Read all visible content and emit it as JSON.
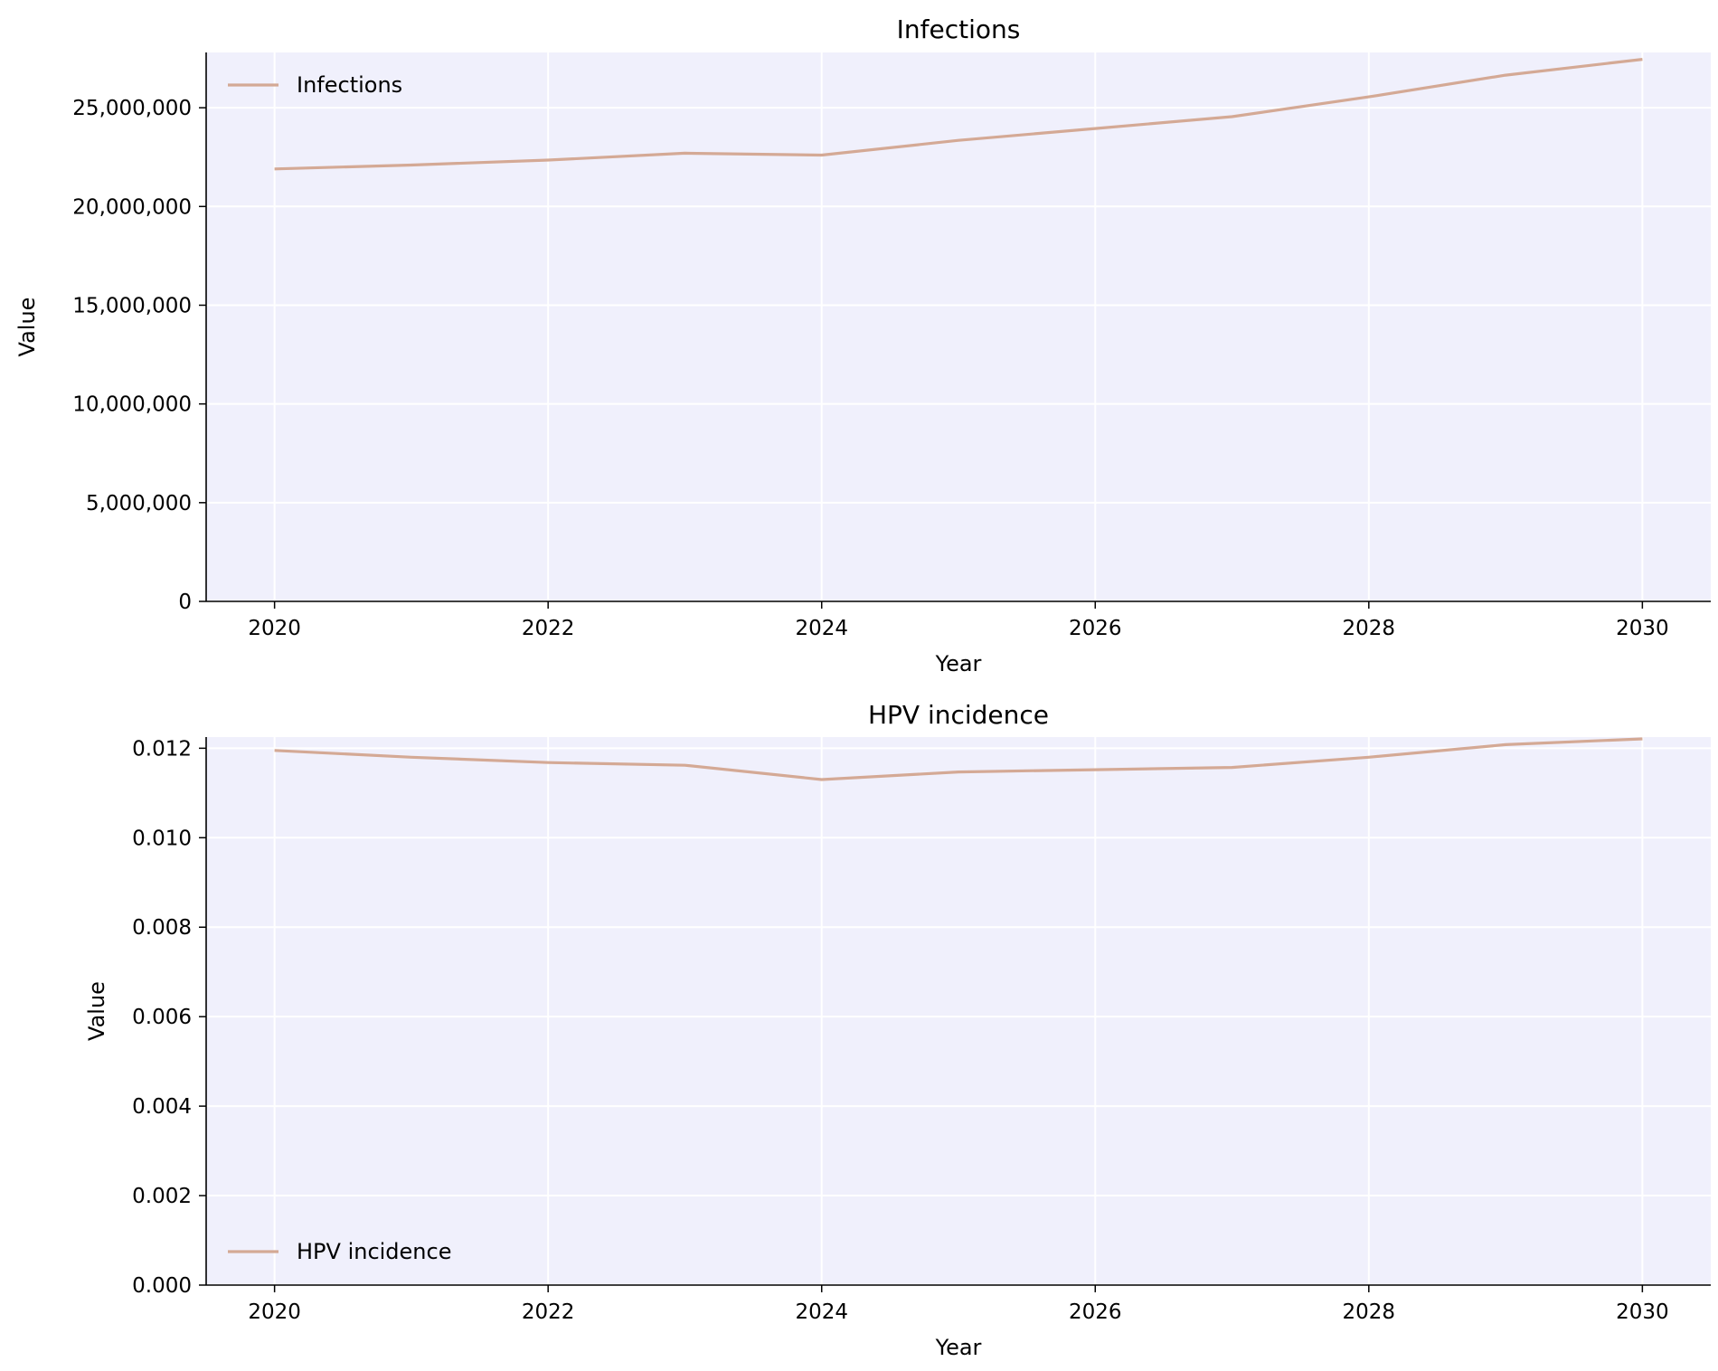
{
  "colors": {
    "background": "#ffffff",
    "plot_background": "#f0f0fc",
    "grid": "#ffffff",
    "line": "#d4a995",
    "axis": "#000000"
  },
  "chart_data": [
    {
      "type": "line",
      "title": "Infections",
      "xlabel": "Year",
      "ylabel": "Value",
      "xlim": [
        2019.5,
        2030.5
      ],
      "ylim": [
        0,
        27800000
      ],
      "x_ticks": [
        2020,
        2022,
        2024,
        2026,
        2028,
        2030
      ],
      "x_tick_labels": [
        "2020",
        "2022",
        "2024",
        "2026",
        "2028",
        "2030"
      ],
      "y_ticks": [
        0,
        5000000,
        10000000,
        15000000,
        20000000,
        25000000
      ],
      "y_tick_labels": [
        "0",
        "5,000,000",
        "10,000,000",
        "15,000,000",
        "20,000,000",
        "25,000,000"
      ],
      "grid": true,
      "legend_position": "top-left",
      "series": [
        {
          "name": "Infections",
          "x": [
            2020,
            2021,
            2022,
            2023,
            2024,
            2025,
            2026,
            2027,
            2028,
            2029,
            2030
          ],
          "values": [
            21900000,
            22100000,
            22350000,
            22700000,
            22600000,
            23350000,
            23950000,
            24550000,
            25550000,
            26650000,
            27450000
          ]
        }
      ]
    },
    {
      "type": "line",
      "title": "HPV incidence",
      "xlabel": "Year",
      "ylabel": "Value",
      "xlim": [
        2019.5,
        2030.5
      ],
      "ylim": [
        0,
        0.01225
      ],
      "x_ticks": [
        2020,
        2022,
        2024,
        2026,
        2028,
        2030
      ],
      "x_tick_labels": [
        "2020",
        "2022",
        "2024",
        "2026",
        "2028",
        "2030"
      ],
      "y_ticks": [
        0,
        0.002,
        0.004,
        0.006,
        0.008,
        0.01,
        0.012
      ],
      "y_tick_labels": [
        "0.000",
        "0.002",
        "0.004",
        "0.006",
        "0.008",
        "0.010",
        "0.012"
      ],
      "grid": true,
      "legend_position": "bottom-left",
      "series": [
        {
          "name": "HPV incidence",
          "x": [
            2020,
            2021,
            2022,
            2023,
            2024,
            2025,
            2026,
            2027,
            2028,
            2029,
            2030
          ],
          "values": [
            0.01195,
            0.0118,
            0.01168,
            0.01162,
            0.0113,
            0.01147,
            0.01152,
            0.01157,
            0.0118,
            0.01208,
            0.01221
          ]
        }
      ]
    }
  ]
}
